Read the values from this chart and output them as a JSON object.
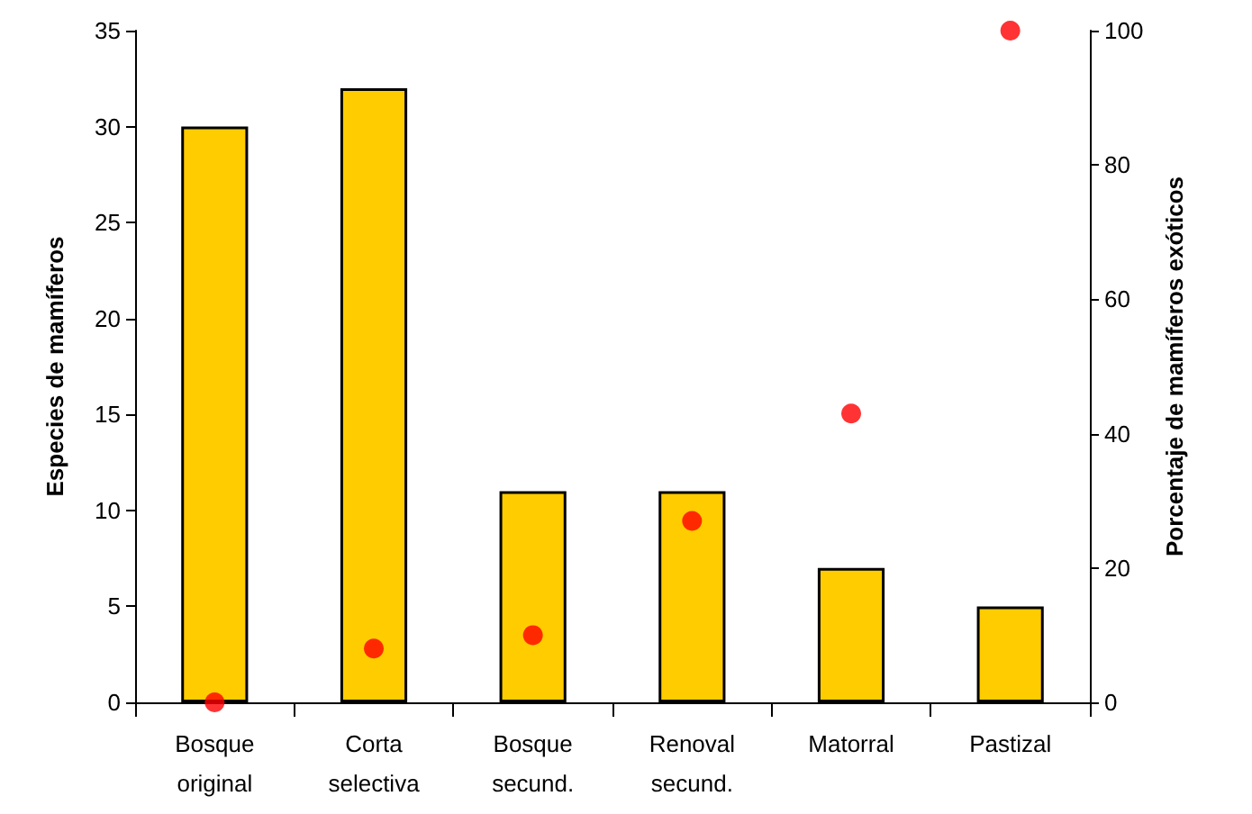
{
  "chart_data": {
    "type": "bar",
    "categories": [
      "Bosque\noriginal",
      "Corta\nselectiva",
      "Bosque\nsecund.",
      "Renoval\nsecund.",
      "Matorral",
      "Pastizal"
    ],
    "ylabel": "Especies de mamíferos",
    "y2label": "Porcentaje de mamíferos exóticos",
    "ylim": [
      0,
      35
    ],
    "yticks": [
      0,
      5,
      10,
      15,
      20,
      25,
      30,
      35
    ],
    "y2lim": [
      0,
      100
    ],
    "y2ticks": [
      0,
      20,
      40,
      60,
      80,
      100
    ],
    "grid": false,
    "series": [
      {
        "color": "#ffcc00",
        "values": [
          30,
          32,
          11,
          11,
          7,
          5
        ]
      },
      {
        "type": "scatter",
        "axis": "y2",
        "color": "#ff0000",
        "marker": "circle",
        "values": [
          0,
          8,
          10,
          27,
          43,
          100
        ]
      }
    ]
  }
}
